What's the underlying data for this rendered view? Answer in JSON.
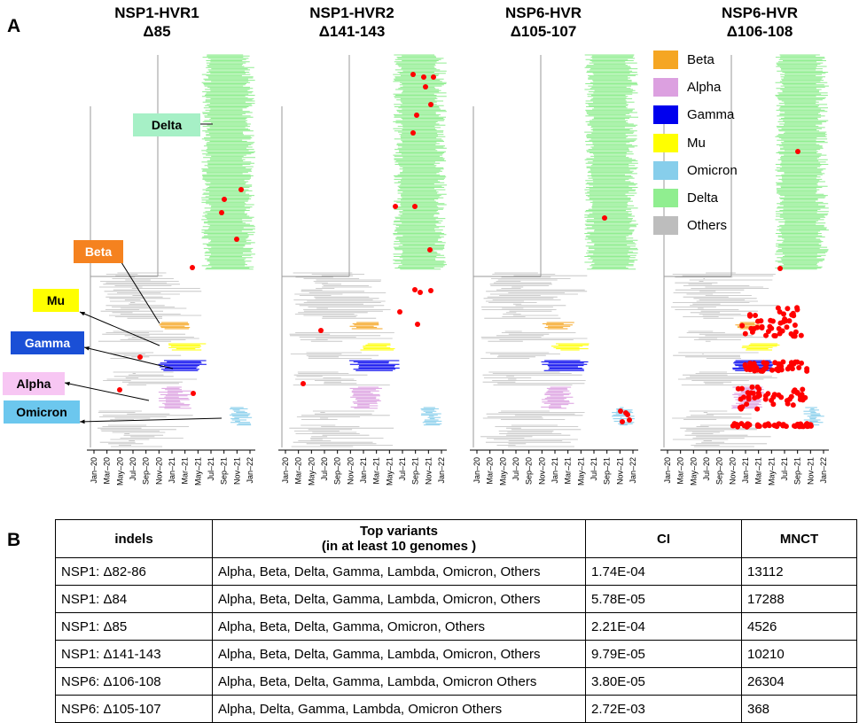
{
  "panel_a_letter": "A",
  "panel_b_letter": "B",
  "panels": [
    {
      "line1": "NSP1-HVR1",
      "line2": "Δ85"
    },
    {
      "line1": "NSP1-HVR2",
      "line2": "Δ141-143"
    },
    {
      "line1": "NSP6-HVR",
      "line2": "Δ105-107"
    },
    {
      "line1": "NSP6-HVR",
      "line2": "Δ106-108"
    }
  ],
  "time_ticks": [
    "Jan–20",
    "Mar–20",
    "May–20",
    "Jul–20",
    "Sep–20",
    "Nov–20",
    "Jan–21",
    "Mar–21",
    "May–21",
    "Jul–21",
    "Sep–21",
    "Nov–21",
    "Jan–22"
  ],
  "variant_labels": {
    "delta": "Delta",
    "beta": "Beta",
    "mu": "Mu",
    "gamma": "Gamma",
    "alpha": "Alpha",
    "omicron": "Omicron"
  },
  "legend": [
    {
      "label": "Beta",
      "color": "#f5a623"
    },
    {
      "label": "Alpha",
      "color": "#dca0e0"
    },
    {
      "label": "Gamma",
      "color": "#0000ee"
    },
    {
      "label": "Mu",
      "color": "#ffff00"
    },
    {
      "label": "Omicron",
      "color": "#87ceeb"
    },
    {
      "label": "Delta",
      "color": "#90ee90"
    },
    {
      "label": "Others",
      "color": "#bdbdbd"
    }
  ],
  "colors": {
    "beta": "#f5a623",
    "alpha": "#dca0e0",
    "gamma": "#0000ee",
    "mu": "#ffff00",
    "omicron": "#87ceeb",
    "delta": "#90ee90",
    "others": "#bdbdbd",
    "dot": "#ff0000",
    "delta_box": "#a6f0c6",
    "beta_box": "#f5821f",
    "mu_box": "#ffff00",
    "gamma_box": "#1a4fd6",
    "alpha_box": "#f7c6f3",
    "omicron_box": "#6cc7ee"
  },
  "table": {
    "headers": [
      "indels",
      "Top variants\n(in at least 10 genomes )",
      "CI",
      "MNCT"
    ],
    "header_variants_line1": "Top variants",
    "header_variants_line2": "(in at least 10 genomes )",
    "rows": [
      {
        "indel": "NSP1: Δ82-86",
        "variants": "Alpha, Beta, Delta, Gamma, Lambda, Omicron, Others",
        "ci": "1.74E-04",
        "mnct": "13112"
      },
      {
        "indel": "NSP1: Δ84",
        "variants": "Alpha, Beta, Delta, Gamma, Lambda, Omicron, Others",
        "ci": "5.78E-05",
        "mnct": "17288"
      },
      {
        "indel": "NSP1: Δ85",
        "variants": "Alpha, Beta, Delta, Gamma, Omicron, Others",
        "ci": "2.21E-04",
        "mnct": "4526"
      },
      {
        "indel": "NSP1: Δ141-143",
        "variants": "Alpha, Beta, Delta, Gamma, Lambda, Omicron, Others",
        "ci": "9.79E-05",
        "mnct": "10210"
      },
      {
        "indel": "NSP6: Δ106-108",
        "variants": "Alpha, Beta, Delta, Gamma, Lambda, Omicron Others",
        "ci": "3.80E-05",
        "mnct": "26304"
      },
      {
        "indel": "NSP6: Δ105-107",
        "variants": "Alpha, Delta, Gamma, Lambda, Omicron Others",
        "ci": "2.72E-03",
        "mnct": "368"
      }
    ]
  }
}
